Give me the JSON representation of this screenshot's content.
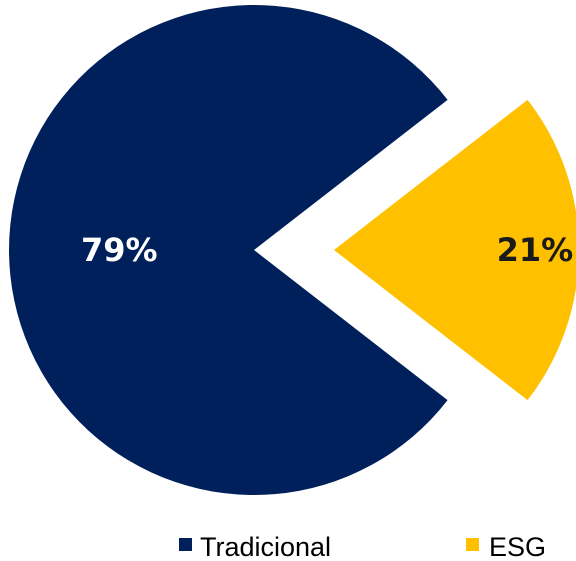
{
  "chart_data": {
    "type": "pie",
    "title": "",
    "categories": [
      "Tradicional",
      "ESG"
    ],
    "values": [
      79,
      21
    ],
    "value_labels": [
      "79%",
      "21%"
    ],
    "colors": [
      "#00205B",
      "#FFC000"
    ],
    "label_colors": [
      "#FFFFFF",
      "#1A1A1A"
    ],
    "exploded": [
      "ESG"
    ],
    "legend": {
      "position": "bottom",
      "entries": [
        "Tradicional",
        "ESG"
      ]
    }
  }
}
